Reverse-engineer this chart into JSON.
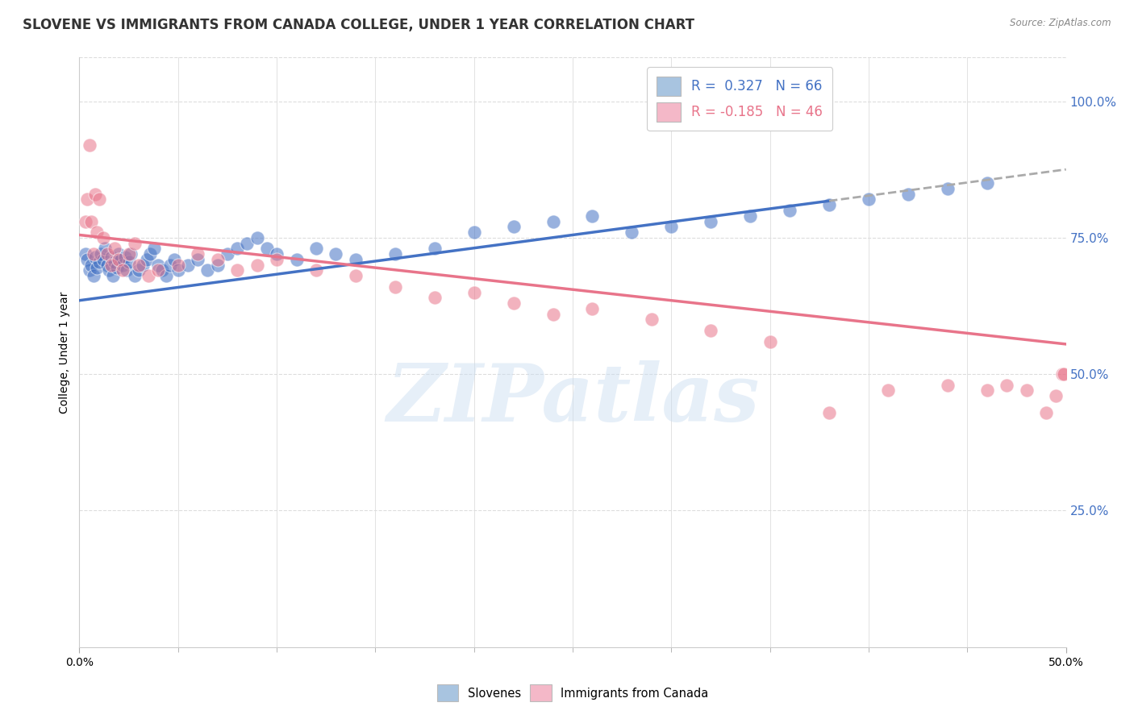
{
  "title": "SLOVENE VS IMMIGRANTS FROM CANADA COLLEGE, UNDER 1 YEAR CORRELATION CHART",
  "source": "Source: ZipAtlas.com",
  "ylabel": "College, Under 1 year",
  "right_yticks": [
    "100.0%",
    "75.0%",
    "50.0%",
    "25.0%"
  ],
  "right_ytick_vals": [
    1.0,
    0.75,
    0.5,
    0.25
  ],
  "xlim": [
    0.0,
    0.5
  ],
  "ylim": [
    0.0,
    1.08
  ],
  "legend_blue_label": "R =  0.327   N = 66",
  "legend_pink_label": "R = -0.185   N = 46",
  "legend_blue_color": "#a8c4e0",
  "legend_pink_color": "#f4b8c8",
  "watermark": "ZIPatlas",
  "blue_scatter_x": [
    0.003,
    0.004,
    0.005,
    0.006,
    0.007,
    0.008,
    0.009,
    0.01,
    0.011,
    0.012,
    0.013,
    0.014,
    0.015,
    0.016,
    0.017,
    0.018,
    0.019,
    0.02,
    0.021,
    0.022,
    0.023,
    0.024,
    0.025,
    0.026,
    0.028,
    0.03,
    0.032,
    0.034,
    0.036,
    0.038,
    0.04,
    0.042,
    0.044,
    0.046,
    0.048,
    0.05,
    0.055,
    0.06,
    0.065,
    0.07,
    0.075,
    0.08,
    0.085,
    0.09,
    0.095,
    0.1,
    0.11,
    0.12,
    0.13,
    0.14,
    0.16,
    0.18,
    0.2,
    0.22,
    0.24,
    0.26,
    0.28,
    0.3,
    0.32,
    0.34,
    0.36,
    0.38,
    0.4,
    0.42,
    0.44,
    0.46
  ],
  "blue_scatter_y": [
    0.72,
    0.71,
    0.69,
    0.7,
    0.68,
    0.715,
    0.695,
    0.705,
    0.72,
    0.71,
    0.73,
    0.7,
    0.69,
    0.715,
    0.68,
    0.705,
    0.695,
    0.72,
    0.71,
    0.7,
    0.715,
    0.69,
    0.705,
    0.72,
    0.68,
    0.69,
    0.7,
    0.71,
    0.72,
    0.73,
    0.7,
    0.69,
    0.68,
    0.7,
    0.71,
    0.69,
    0.7,
    0.71,
    0.69,
    0.7,
    0.72,
    0.73,
    0.74,
    0.75,
    0.73,
    0.72,
    0.71,
    0.73,
    0.72,
    0.71,
    0.72,
    0.73,
    0.76,
    0.77,
    0.78,
    0.79,
    0.76,
    0.77,
    0.78,
    0.79,
    0.8,
    0.81,
    0.82,
    0.83,
    0.84,
    0.85
  ],
  "pink_scatter_x": [
    0.003,
    0.004,
    0.005,
    0.006,
    0.007,
    0.008,
    0.009,
    0.01,
    0.012,
    0.014,
    0.016,
    0.018,
    0.02,
    0.022,
    0.025,
    0.028,
    0.03,
    0.035,
    0.04,
    0.05,
    0.06,
    0.07,
    0.08,
    0.09,
    0.1,
    0.12,
    0.14,
    0.16,
    0.18,
    0.2,
    0.22,
    0.24,
    0.26,
    0.29,
    0.32,
    0.35,
    0.38,
    0.41,
    0.44,
    0.46,
    0.47,
    0.48,
    0.49,
    0.495,
    0.498,
    0.499
  ],
  "pink_scatter_y": [
    0.78,
    0.82,
    0.92,
    0.78,
    0.72,
    0.83,
    0.76,
    0.82,
    0.75,
    0.72,
    0.7,
    0.73,
    0.71,
    0.69,
    0.72,
    0.74,
    0.7,
    0.68,
    0.69,
    0.7,
    0.72,
    0.71,
    0.69,
    0.7,
    0.71,
    0.69,
    0.68,
    0.66,
    0.64,
    0.65,
    0.63,
    0.61,
    0.62,
    0.6,
    0.58,
    0.56,
    0.43,
    0.47,
    0.48,
    0.47,
    0.48,
    0.47,
    0.43,
    0.46,
    0.5,
    0.5
  ],
  "blue_line_color": "#4472c4",
  "pink_line_color": "#e8748a",
  "dashed_line_color": "#aaaaaa",
  "grid_color": "#dddddd",
  "title_fontsize": 12,
  "axis_label_fontsize": 10,
  "tick_fontsize": 10,
  "blue_line_x0": 0.0,
  "blue_line_y0": 0.635,
  "blue_line_x1": 0.5,
  "blue_line_y1": 0.875,
  "pink_line_x0": 0.0,
  "pink_line_y0": 0.755,
  "pink_line_x1": 0.5,
  "pink_line_y1": 0.555,
  "blue_solid_cutoff": 0.38,
  "xtick_positions": [
    0.0,
    0.5
  ],
  "xtick_labels": [
    "0.0%",
    "50.0%"
  ]
}
